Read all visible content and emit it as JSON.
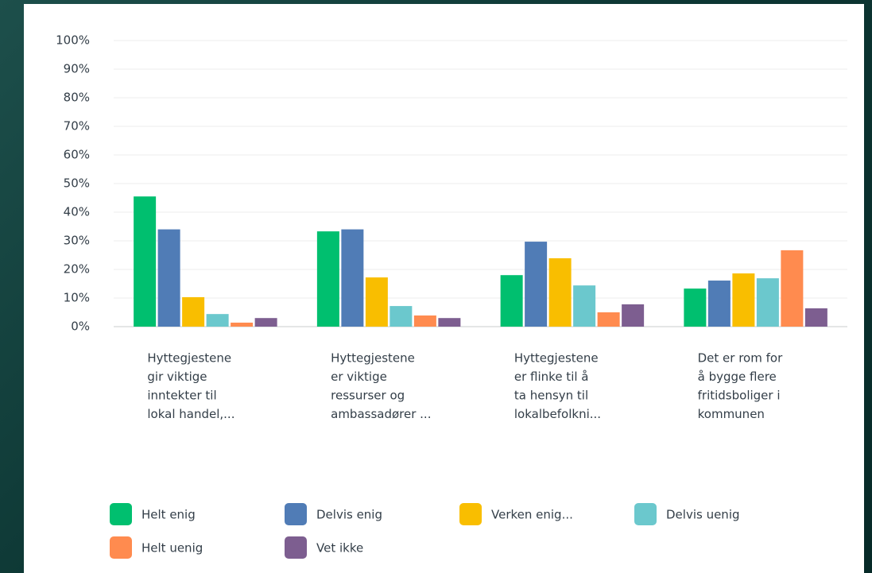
{
  "chart_data": {
    "type": "bar",
    "categories": [
      [
        "Hyttegjestene",
        "gir viktige",
        "inntekter til",
        "lokal handel,..."
      ],
      [
        "Hyttegjestene",
        "er viktige",
        "ressurser og",
        "ambassadører ..."
      ],
      [
        "Hyttegjestene",
        "er flinke til å",
        "ta hensyn til",
        "lokalbefolkni..."
      ],
      [
        "Det er rom for",
        "å bygge flere",
        "fritidsboliger i",
        "kommunen"
      ]
    ],
    "series": [
      {
        "name": "Helt enig",
        "color": "#00bf6f",
        "values": [
          45.5,
          33.3,
          18,
          13.3
        ]
      },
      {
        "name": "Delvis enig",
        "color": "#507cb6",
        "values": [
          34,
          34,
          29.7,
          16.1
        ]
      },
      {
        "name": "Verken enig...",
        "color": "#f9be00",
        "values": [
          10.3,
          17.2,
          23.9,
          18.6
        ]
      },
      {
        "name": "Delvis uenig",
        "color": "#6bc8cd",
        "values": [
          4.4,
          7.2,
          14.4,
          16.9
        ]
      },
      {
        "name": "Helt uenig",
        "color": "#ff8b4f",
        "values": [
          1.4,
          3.9,
          5,
          26.7
        ]
      },
      {
        "name": "Vet ikke",
        "color": "#7d5e90",
        "values": [
          3,
          3,
          7.8,
          6.4
        ]
      }
    ],
    "ylim": [
      0,
      100
    ],
    "yticks": [
      {
        "value": 0,
        "label": "0%"
      },
      {
        "value": 10,
        "label": "10%"
      },
      {
        "value": 20,
        "label": "20%"
      },
      {
        "value": 30,
        "label": "30%"
      },
      {
        "value": 40,
        "label": "40%"
      },
      {
        "value": 50,
        "label": "50%"
      },
      {
        "value": 60,
        "label": "60%"
      },
      {
        "value": 70,
        "label": "70%"
      },
      {
        "value": 80,
        "label": "80%"
      },
      {
        "value": 90,
        "label": "90%"
      },
      {
        "value": 100,
        "label": "100%"
      }
    ],
    "grid": true
  }
}
